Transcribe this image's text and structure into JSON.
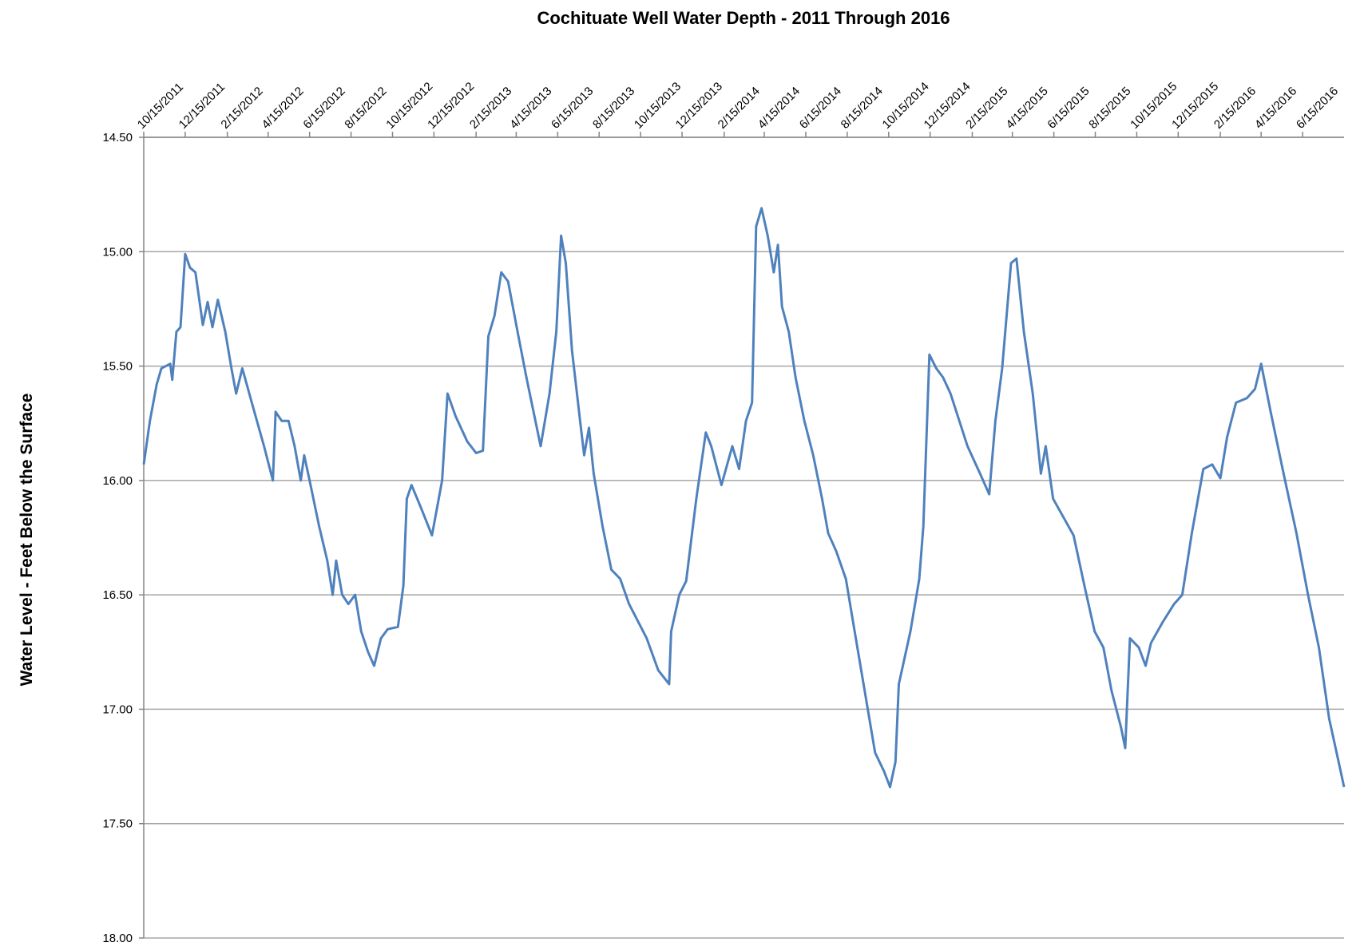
{
  "chart_data": {
    "type": "line",
    "title": "Cochituate Well Water Depth - 2011 Through 2016",
    "y_label": "Water Level - Feet Below the Surface",
    "y_inverted": true,
    "grid": true,
    "ylim": [
      14.5,
      18.0
    ],
    "yticks": [
      {
        "value": 14.5,
        "label": "14.50"
      },
      {
        "value": 15.0,
        "label": "15.00"
      },
      {
        "value": 15.5,
        "label": "15.50"
      },
      {
        "value": 16.0,
        "label": "16.00"
      },
      {
        "value": 16.5,
        "label": "16.50"
      },
      {
        "value": 17.0,
        "label": "17.00"
      },
      {
        "value": 17.5,
        "label": "17.50"
      },
      {
        "value": 18.0,
        "label": "18.00"
      }
    ],
    "xlim": [
      "2011-10-15",
      "2016-08-15"
    ],
    "xticks": [
      {
        "value": "2011-10-15",
        "label": "10/15/2011"
      },
      {
        "value": "2011-12-15",
        "label": "12/15/2011"
      },
      {
        "value": "2012-02-15",
        "label": "2/15/2012"
      },
      {
        "value": "2012-04-15",
        "label": "4/15/2012"
      },
      {
        "value": "2012-06-15",
        "label": "6/15/2012"
      },
      {
        "value": "2012-08-15",
        "label": "8/15/2012"
      },
      {
        "value": "2012-10-15",
        "label": "10/15/2012"
      },
      {
        "value": "2012-12-15",
        "label": "12/15/2012"
      },
      {
        "value": "2013-02-15",
        "label": "2/15/2013"
      },
      {
        "value": "2013-04-15",
        "label": "4/15/2013"
      },
      {
        "value": "2013-06-15",
        "label": "6/15/2013"
      },
      {
        "value": "2013-08-15",
        "label": "8/15/2013"
      },
      {
        "value": "2013-10-15",
        "label": "10/15/2013"
      },
      {
        "value": "2013-12-15",
        "label": "12/15/2013"
      },
      {
        "value": "2014-02-15",
        "label": "2/15/2014"
      },
      {
        "value": "2014-04-15",
        "label": "4/15/2014"
      },
      {
        "value": "2014-06-15",
        "label": "6/15/2014"
      },
      {
        "value": "2014-08-15",
        "label": "8/15/2014"
      },
      {
        "value": "2014-10-15",
        "label": "10/15/2014"
      },
      {
        "value": "2014-12-15",
        "label": "12/15/2014"
      },
      {
        "value": "2015-02-15",
        "label": "2/15/2015"
      },
      {
        "value": "2015-04-15",
        "label": "4/15/2015"
      },
      {
        "value": "2015-06-15",
        "label": "6/15/2015"
      },
      {
        "value": "2015-08-15",
        "label": "8/15/2015"
      },
      {
        "value": "2015-10-15",
        "label": "10/15/2015"
      },
      {
        "value": "2015-12-15",
        "label": "12/15/2015"
      },
      {
        "value": "2016-02-15",
        "label": "2/15/2016"
      },
      {
        "value": "2016-04-15",
        "label": "4/15/2016"
      },
      {
        "value": "2016-06-15",
        "label": "6/15/2016"
      }
    ],
    "x": [
      "2011-10-15",
      "2011-10-24",
      "2011-11-03",
      "2011-11-10",
      "2011-11-23",
      "2011-11-26",
      "2011-12-02",
      "2011-12-08",
      "2011-12-15",
      "2011-12-22",
      "2011-12-30",
      "2012-01-10",
      "2012-01-17",
      "2012-01-24",
      "2012-02-01",
      "2012-02-12",
      "2012-02-21",
      "2012-02-28",
      "2012-03-08",
      "2012-03-22",
      "2012-04-09",
      "2012-04-22",
      "2012-04-26",
      "2012-05-05",
      "2012-05-15",
      "2012-05-24",
      "2012-06-02",
      "2012-06-07",
      "2012-06-15",
      "2012-06-29",
      "2012-07-11",
      "2012-07-19",
      "2012-07-24",
      "2012-08-02",
      "2012-08-11",
      "2012-08-21",
      "2012-08-30",
      "2012-09-09",
      "2012-09-18",
      "2012-09-28",
      "2012-10-08",
      "2012-10-23",
      "2012-10-31",
      "2012-11-05",
      "2012-11-12",
      "2012-11-26",
      "2012-12-12",
      "2012-12-27",
      "2013-01-04",
      "2013-01-16",
      "2013-02-02",
      "2013-02-15",
      "2013-02-25",
      "2013-03-05",
      "2013-03-14",
      "2013-03-24",
      "2013-04-03",
      "2013-04-17",
      "2013-04-30",
      "2013-05-21",
      "2013-06-03",
      "2013-06-13",
      "2013-06-20",
      "2013-06-27",
      "2013-07-06",
      "2013-07-18",
      "2013-07-24",
      "2013-07-31",
      "2013-08-07",
      "2013-08-20",
      "2013-09-02",
      "2013-09-15",
      "2013-09-28",
      "2013-10-24",
      "2013-11-10",
      "2013-11-26",
      "2013-11-29",
      "2013-12-11",
      "2013-12-21",
      "2014-01-05",
      "2014-01-19",
      "2014-01-27",
      "2014-02-11",
      "2014-02-27",
      "2014-03-09",
      "2014-03-19",
      "2014-03-28",
      "2014-04-03",
      "2014-04-11",
      "2014-04-20",
      "2014-04-29",
      "2014-05-05",
      "2014-05-11",
      "2014-05-21",
      "2014-05-31",
      "2014-06-13",
      "2014-06-26",
      "2014-07-09",
      "2014-07-18",
      "2014-07-30",
      "2014-08-13",
      "2014-08-26",
      "2014-09-12",
      "2014-09-25",
      "2014-10-08",
      "2014-10-17",
      "2014-10-25",
      "2014-10-30",
      "2014-11-16",
      "2014-11-29",
      "2014-12-05",
      "2014-12-14",
      "2014-12-24",
      "2015-01-03",
      "2015-01-14",
      "2015-01-27",
      "2015-02-08",
      "2015-02-28",
      "2015-03-12",
      "2015-03-21",
      "2015-03-31",
      "2015-04-13",
      "2015-04-21",
      "2015-05-02",
      "2015-05-15",
      "2015-05-27",
      "2015-06-03",
      "2015-06-14",
      "2015-06-29",
      "2015-07-14",
      "2015-07-30",
      "2015-08-14",
      "2015-08-27",
      "2015-09-08",
      "2015-09-22",
      "2015-09-28",
      "2015-10-05",
      "2015-10-18",
      "2015-10-28",
      "2015-11-05",
      "2015-11-22",
      "2015-12-09",
      "2015-12-21",
      "2016-01-04",
      "2016-01-21",
      "2016-02-03",
      "2016-02-15",
      "2016-02-25",
      "2016-03-09",
      "2016-03-25",
      "2016-04-06",
      "2016-04-15",
      "2016-04-29",
      "2016-05-18",
      "2016-06-06",
      "2016-06-23",
      "2016-07-09",
      "2016-07-24",
      "2016-08-10",
      "2016-08-15"
    ],
    "series": [
      {
        "name": "Water Level",
        "color": "#4f81bd",
        "values": [
          15.93,
          15.74,
          15.58,
          15.51,
          15.49,
          15.56,
          15.35,
          15.33,
          15.01,
          15.07,
          15.09,
          15.32,
          15.22,
          15.33,
          15.21,
          15.35,
          15.51,
          15.62,
          15.51,
          15.66,
          15.85,
          16.0,
          15.7,
          15.74,
          15.74,
          15.85,
          16.0,
          15.89,
          16.0,
          16.2,
          16.35,
          16.5,
          16.35,
          16.5,
          16.54,
          16.5,
          16.66,
          16.75,
          16.81,
          16.69,
          16.65,
          16.64,
          16.46,
          16.08,
          16.02,
          16.12,
          16.24,
          16.0,
          15.62,
          15.72,
          15.83,
          15.88,
          15.87,
          15.37,
          15.28,
          15.09,
          15.13,
          15.35,
          15.55,
          15.85,
          15.62,
          15.35,
          14.93,
          15.05,
          15.43,
          15.74,
          15.89,
          15.77,
          15.97,
          16.2,
          16.39,
          16.43,
          16.54,
          16.69,
          16.83,
          16.89,
          16.66,
          16.5,
          16.44,
          16.08,
          15.79,
          15.85,
          16.02,
          15.85,
          15.95,
          15.74,
          15.66,
          14.89,
          14.81,
          14.93,
          15.09,
          14.97,
          15.24,
          15.35,
          15.55,
          15.74,
          15.89,
          16.08,
          16.23,
          16.31,
          16.43,
          16.66,
          16.96,
          17.19,
          17.27,
          17.34,
          17.23,
          16.89,
          16.66,
          16.43,
          16.2,
          15.45,
          15.51,
          15.55,
          15.62,
          15.74,
          15.85,
          15.98,
          16.06,
          15.74,
          15.51,
          15.05,
          15.03,
          15.35,
          15.62,
          15.97,
          15.85,
          16.08,
          16.16,
          16.24,
          16.46,
          16.66,
          16.73,
          16.92,
          17.08,
          17.17,
          16.69,
          16.73,
          16.81,
          16.71,
          16.62,
          16.54,
          16.5,
          16.23,
          15.95,
          15.93,
          15.99,
          15.81,
          15.66,
          15.64,
          15.6,
          15.49,
          15.7,
          15.97,
          16.23,
          16.5,
          16.73,
          17.04,
          17.27,
          17.34
        ]
      }
    ]
  }
}
